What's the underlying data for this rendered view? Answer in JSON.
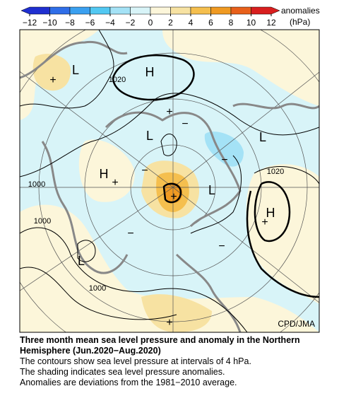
{
  "colorbar": {
    "ticks": [
      {
        "value": -12,
        "label": "−12"
      },
      {
        "value": -10,
        "label": "−10"
      },
      {
        "value": -8,
        "label": "−8"
      },
      {
        "value": -6,
        "label": "−6"
      },
      {
        "value": -4,
        "label": "−4"
      },
      {
        "value": -2,
        "label": "−2"
      },
      0,
      2,
      4,
      6,
      8,
      10,
      12
    ],
    "colors": [
      "#1f2fd0",
      "#2f6ee8",
      "#3aa0f0",
      "#52c8f2",
      "#a4e2f6",
      "#d8f4f8",
      "#fcf6da",
      "#f7e2a2",
      "#f5bf4e",
      "#f09a22",
      "#e8601a",
      "#d81e1e"
    ],
    "unit_label": "anomalies",
    "unit": "(hPa)"
  },
  "map": {
    "labels": [
      "L",
      "+",
      "H",
      "1020",
      "+",
      "L",
      "−",
      "L",
      "H",
      "+",
      "−",
      "+",
      "L",
      "−",
      "1020",
      "1000",
      "1000",
      "H",
      "+",
      "−",
      "−",
      "L",
      "1000",
      "+"
    ],
    "credit": "CPD/JMA"
  },
  "caption": {
    "title_lines": [
      "Three month mean sea level pressure and anomaly in the Northern",
      "Hemisphere (Jun.2020−Aug.2020)"
    ],
    "notes": [
      "The contours show sea level pressure at intervals of 4 hPa.",
      "The shading indicates sea level pressure anomalies.",
      "Anomalies are deviations from the 1981−2010 average."
    ]
  }
}
